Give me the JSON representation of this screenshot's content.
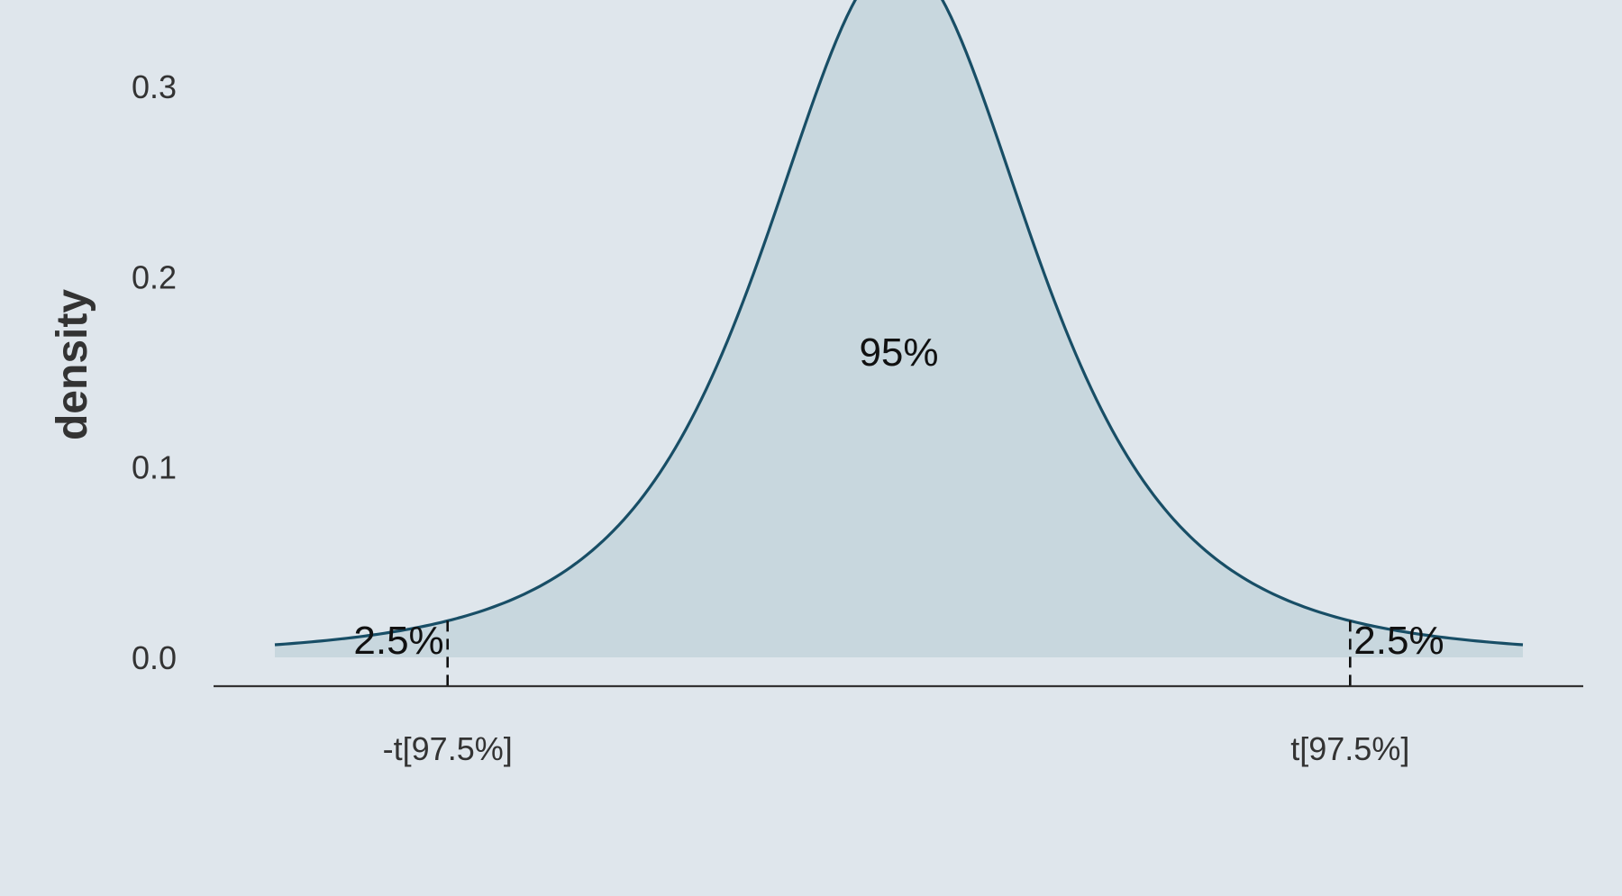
{
  "colors": {
    "background": "#dfe6ec",
    "curve": "#184e66",
    "fill": "#c8d7de",
    "axis": "#333333",
    "text": "#333333",
    "annotation": "#111111",
    "critical_line": "#111111"
  },
  "chart_data": {
    "type": "area",
    "title": "",
    "xlabel": "",
    "ylabel": "density",
    "distribution": "t",
    "degrees_of_freedom": 3,
    "xlim": [
      -4.4,
      4.4
    ],
    "ylim": [
      0,
      0.3
    ],
    "y_ticks": [
      0.0,
      0.1,
      0.2,
      0.3
    ],
    "y_tick_labels": [
      "0.0",
      "0.1",
      "0.2",
      "0.3"
    ],
    "x_ticks": [
      -3.182,
      3.182
    ],
    "x_tick_labels": [
      "-t[97.5%]",
      "t[97.5%]"
    ],
    "critical_values": [
      -3.182,
      3.182
    ],
    "grid": false,
    "annotations": [
      {
        "label": "2.5%",
        "region": "left tail"
      },
      {
        "label": "95%",
        "region": "center"
      },
      {
        "label": "2.5%",
        "region": "right tail"
      }
    ]
  }
}
